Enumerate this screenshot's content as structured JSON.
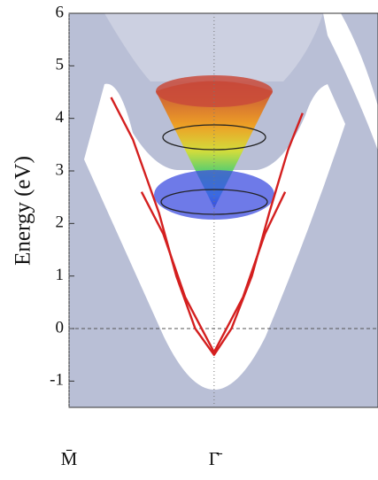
{
  "chart_data": {
    "type": "line",
    "y_label": "Energy (eV)",
    "xlim": [
      -1,
      1.13
    ],
    "ylim": [
      -1.5,
      6
    ],
    "xticks": [
      {
        "value": -1,
        "label": "M̄"
      },
      {
        "value": 0,
        "label": "Γ̄"
      }
    ],
    "yticks": [
      -1,
      0,
      1,
      2,
      3,
      4,
      5,
      6
    ],
    "hline": 0,
    "series": [
      {
        "color": "#d41f1f",
        "x": [
          -0.71,
          -0.56,
          -0.38,
          -0.26,
          -0.13,
          0,
          0.12,
          0.26,
          0.38,
          0.51,
          0.61
        ],
        "values": [
          4.4,
          3.6,
          2.2,
          1.0,
          0.0,
          -0.5,
          0.0,
          1.0,
          2.2,
          3.4,
          4.1
        ]
      },
      {
        "color": "#d41f1f",
        "x": [
          -0.5,
          -0.35,
          -0.2,
          0,
          0.2,
          0.35,
          0.49
        ],
        "values": [
          2.6,
          1.8,
          0.6,
          -0.45,
          0.6,
          1.8,
          2.6
        ]
      }
    ]
  }
}
